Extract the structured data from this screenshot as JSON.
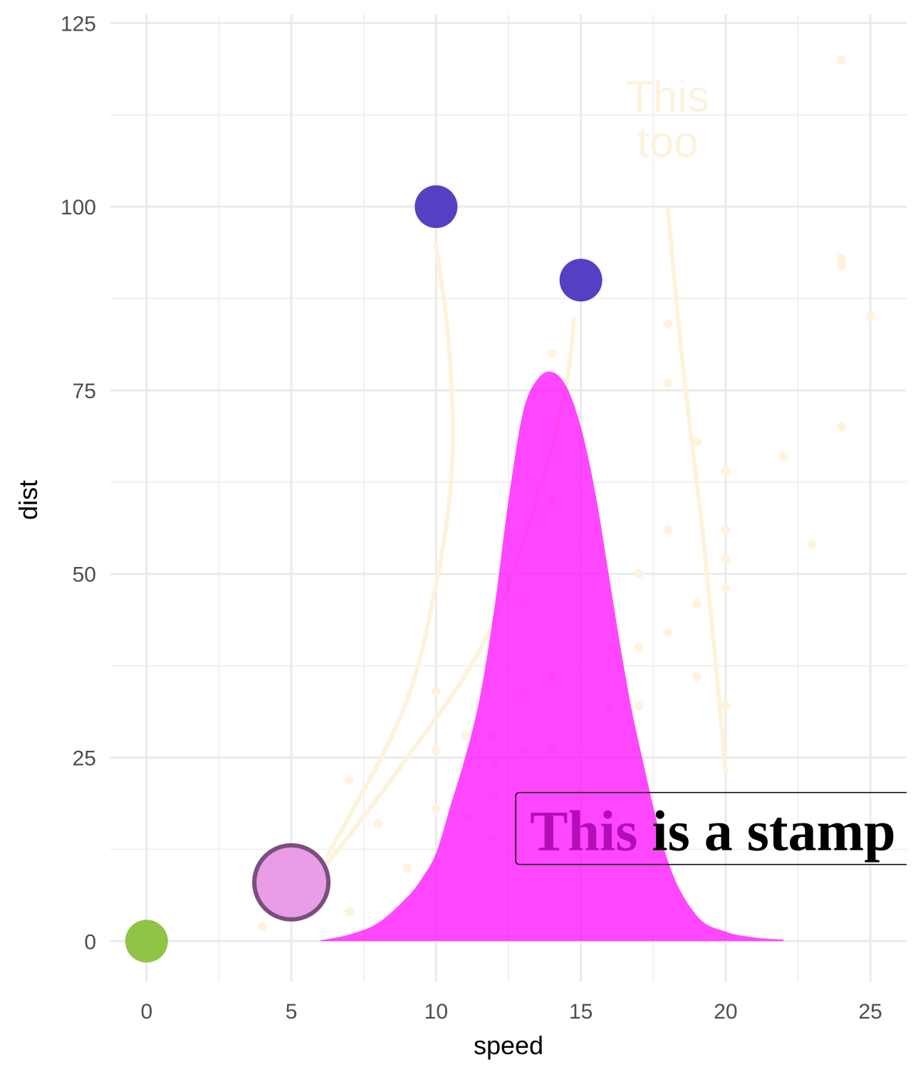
{
  "chart_data": {
    "type": "scatter",
    "x_label": "speed",
    "y_label": "dist",
    "xlim": [
      -1.25,
      26.25
    ],
    "ylim": [
      -5.5,
      126.2
    ],
    "xticks": [
      0,
      5,
      10,
      15,
      20,
      25
    ],
    "yticks": [
      0,
      25,
      50,
      75,
      100,
      125
    ],
    "grid": true,
    "points": {
      "color": "#fff3de",
      "x": [
        4,
        4,
        7,
        7,
        8,
        9,
        10,
        10,
        10,
        11,
        11,
        12,
        12,
        12,
        12,
        13,
        13,
        13,
        13,
        14,
        14,
        14,
        14,
        15,
        15,
        15,
        16,
        16,
        17,
        17,
        17,
        18,
        18,
        18,
        18,
        19,
        19,
        19,
        20,
        20,
        20,
        20,
        20,
        22,
        23,
        24,
        24,
        24,
        24,
        25
      ],
      "y": [
        2,
        10,
        4,
        22,
        16,
        10,
        18,
        26,
        34,
        17,
        28,
        14,
        20,
        24,
        28,
        26,
        34,
        34,
        46,
        26,
        36,
        60,
        80,
        20,
        26,
        54,
        32,
        40,
        32,
        40,
        50,
        42,
        56,
        76,
        84,
        36,
        46,
        68,
        32,
        48,
        52,
        56,
        64,
        66,
        54,
        70,
        92,
        93,
        120,
        85
      ]
    },
    "density": {
      "color": "#ff00ff",
      "x": [
        6,
        7,
        8,
        9,
        9.5,
        10,
        10.5,
        11,
        11.5,
        12,
        12.5,
        13,
        13.5,
        14,
        14.5,
        15,
        15.5,
        16,
        16.5,
        17,
        18,
        19,
        20,
        21,
        22
      ],
      "y": [
        0.1,
        0.9,
        2.5,
        6,
        8.5,
        12,
        18.5,
        25,
        33,
        45,
        60,
        72,
        76.5,
        77.5,
        75.5,
        70,
        61,
        49,
        37,
        27,
        11,
        3.5,
        1.3,
        0.5,
        0.2
      ]
    },
    "curves": {
      "color": "#fdf2dc",
      "lines": [
        {
          "x": [
            6.25,
            8.83,
            10,
            10.56,
            10.43,
            10
          ],
          "y": [
            11.7,
            31.1,
            48.6,
            65.1,
            81.6,
            94.8
          ]
        },
        {
          "x": [
            6.25,
            8.71,
            11.66,
            13.63,
            14.49,
            14.76
          ],
          "y": [
            10.6,
            23.4,
            40.8,
            62.2,
            75.7,
            84.8
          ]
        },
        {
          "x": [
            18,
            18.54,
            19.29,
            20
          ],
          "y": [
            99.7,
            77.7,
            52.5,
            23.2
          ]
        }
      ]
    },
    "highlights": [
      {
        "x": 0,
        "y": 0,
        "color": "#8fc447"
      },
      {
        "x": 5,
        "y": 8,
        "color": "#e89de6",
        "stroke": "#7b4f7b"
      },
      {
        "x": 10,
        "y": 100,
        "color": "#5540c4"
      },
      {
        "x": 15,
        "y": 90,
        "color": "#5540c4"
      }
    ],
    "text_annotation": {
      "x": 18,
      "y": 112,
      "color": "#fdf2dc",
      "lines": [
        "This",
        "too"
      ]
    },
    "stamp": {
      "x": 12.75,
      "y": 15,
      "parts": [
        {
          "text": "This",
          "color": "#b30db8"
        },
        {
          "text": "is a stamp",
          "color": "#000000"
        }
      ]
    }
  }
}
